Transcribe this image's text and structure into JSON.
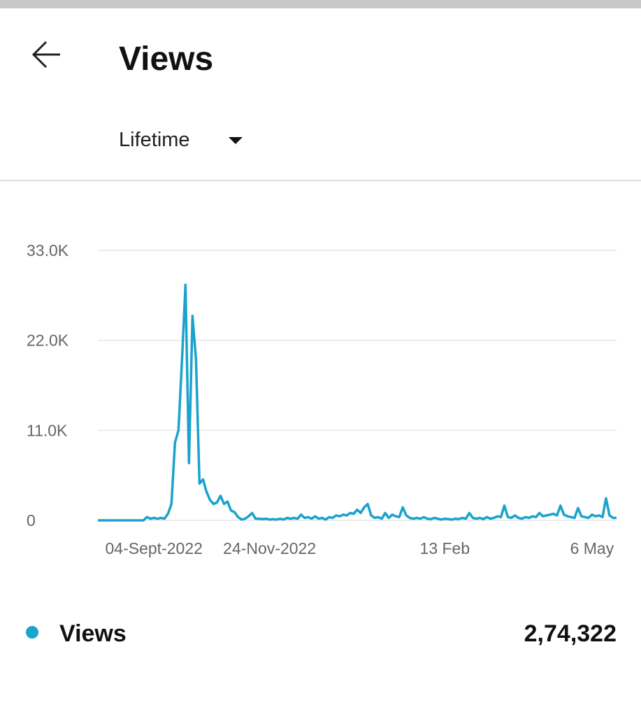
{
  "header": {
    "title": "Views",
    "filter": "Lifetime"
  },
  "chart_data": {
    "type": "line",
    "categories": [
      null,
      null,
      null,
      null,
      null,
      null,
      null,
      null,
      null,
      null,
      null,
      null,
      null,
      null,
      null,
      null,
      "04-Sept-2022",
      null,
      null,
      null,
      null,
      null,
      null,
      null,
      null,
      null,
      null,
      null,
      null,
      null,
      null,
      null,
      null,
      null,
      null,
      null,
      null,
      null,
      null,
      null,
      null,
      null,
      null,
      null,
      null,
      null,
      null,
      null,
      null,
      "24-Nov-2022",
      null,
      null,
      null,
      null,
      null,
      null,
      null,
      null,
      null,
      null,
      null,
      null,
      null,
      null,
      null,
      null,
      null,
      null,
      null,
      null,
      null,
      null,
      null,
      null,
      null,
      null,
      null,
      null,
      null,
      null,
      null,
      null,
      null,
      null,
      null,
      null,
      null,
      null,
      null,
      null,
      null,
      null,
      null,
      null,
      null,
      null,
      null,
      null,
      null,
      "13 Feb",
      null,
      null,
      null,
      null,
      null,
      null,
      null,
      null,
      null,
      null,
      null,
      null,
      null,
      null,
      null,
      null,
      null,
      null,
      null,
      null,
      null,
      null,
      null,
      null,
      null,
      null,
      null,
      null,
      null,
      null,
      null,
      null,
      null,
      null,
      null,
      null,
      null,
      null,
      null,
      null,
      null,
      "6 May",
      null,
      null,
      null,
      null,
      null,
      null,
      null
    ],
    "series": [
      {
        "name": "Views",
        "color": "#1aa3cc",
        "values": [
          0,
          0,
          0,
          0,
          0,
          0,
          0,
          0,
          0,
          0,
          0,
          0,
          0,
          0,
          400,
          200,
          300,
          200,
          300,
          200,
          800,
          2000,
          9500,
          11000,
          19500,
          28800,
          7000,
          25000,
          19700,
          4500,
          5000,
          3500,
          2500,
          2000,
          2200,
          3000,
          2000,
          2300,
          1200,
          1000,
          400,
          100,
          200,
          500,
          900,
          200,
          200,
          150,
          200,
          100,
          150,
          100,
          200,
          100,
          300,
          200,
          300,
          200,
          700,
          300,
          400,
          200,
          500,
          200,
          300,
          100,
          400,
          300,
          600,
          500,
          700,
          600,
          900,
          800,
          1300,
          900,
          1600,
          2000,
          600,
          300,
          400,
          200,
          900,
          300,
          700,
          500,
          400,
          1600,
          600,
          300,
          200,
          300,
          200,
          400,
          200,
          150,
          300,
          200,
          100,
          200,
          150,
          100,
          200,
          150,
          300,
          200,
          900,
          300,
          200,
          300,
          150,
          400,
          200,
          300,
          500,
          400,
          1800,
          400,
          300,
          600,
          300,
          200,
          400,
          300,
          500,
          400,
          900,
          500,
          600,
          700,
          800,
          600,
          1800,
          700,
          500,
          400,
          300,
          1500,
          500,
          400,
          300,
          700,
          500,
          600,
          400,
          2700,
          600,
          300,
          300
        ]
      }
    ],
    "ylim": [
      0,
      33000
    ],
    "yticks": [
      0,
      {
        "value": 11000,
        "label": "11.0K"
      },
      {
        "value": 22000,
        "label": "22.0K"
      },
      {
        "value": 33000,
        "label": "33.0K"
      }
    ],
    "grid": true
  },
  "legend": {
    "total": "2,74,322"
  }
}
